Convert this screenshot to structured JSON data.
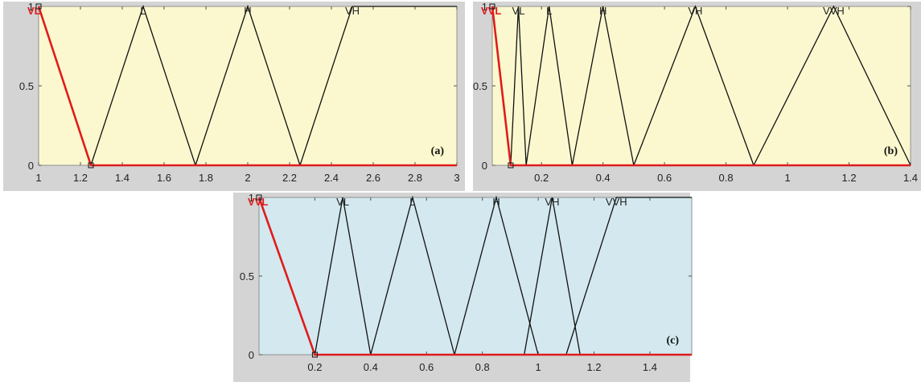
{
  "chart_data": [
    {
      "id": "a",
      "type": "line",
      "panel_label": "(a)",
      "background": "#fbf8cf",
      "frame_color": "#bdbdbd",
      "xlim": [
        1,
        3
      ],
      "ylim": [
        0,
        1
      ],
      "xticks": [
        1,
        1.2,
        1.4,
        1.6,
        1.8,
        2,
        2.2,
        2.4,
        2.6,
        2.8,
        3
      ],
      "xtick_labels": [
        "1",
        "1.2",
        "1.4",
        "1.6",
        "1.8",
        "2",
        "2.2",
        "2.4",
        "2.6",
        "2.8",
        "3"
      ],
      "yticks": [
        0,
        0.5,
        1
      ],
      "ytick_labels": [
        "0",
        "0.5",
        "1"
      ],
      "series": [
        {
          "name": "VL",
          "color": "#e01b1b",
          "highlight": true,
          "points": [
            [
              1,
              1
            ],
            [
              1.25,
              0
            ],
            [
              3,
              0
            ]
          ]
        },
        {
          "name": "L",
          "color": "#111111",
          "points": [
            [
              1.25,
              0
            ],
            [
              1.5,
              1
            ],
            [
              1.75,
              0
            ]
          ]
        },
        {
          "name": "H",
          "color": "#111111",
          "points": [
            [
              1.75,
              0
            ],
            [
              2,
              1
            ],
            [
              2.25,
              0
            ]
          ]
        },
        {
          "name": "VH",
          "color": "#111111",
          "points": [
            [
              2.25,
              0
            ],
            [
              2.5,
              1
            ],
            [
              3,
              1
            ]
          ]
        }
      ]
    },
    {
      "id": "b",
      "type": "line",
      "panel_label": "(b)",
      "background": "#fbf8cf",
      "frame_color": "#bdbdbd",
      "xlim": [
        0.04,
        1.4
      ],
      "ylim": [
        0,
        1
      ],
      "xticks": [
        0.2,
        0.4,
        0.6,
        0.8,
        1,
        1.2,
        1.4
      ],
      "xtick_labels": [
        "0.2",
        "0.4",
        "0.6",
        "0.8",
        "1",
        "1.2",
        "1.4"
      ],
      "yticks": [
        0,
        0.5,
        1
      ],
      "ytick_labels": [
        "0",
        "0.5",
        "1"
      ],
      "series": [
        {
          "name": "VVL",
          "color": "#e01b1b",
          "highlight": true,
          "points": [
            [
              0.04,
              1
            ],
            [
              0.1,
              0
            ],
            [
              1.4,
              0
            ]
          ]
        },
        {
          "name": "VL",
          "color": "#111111",
          "points": [
            [
              0.1,
              0
            ],
            [
              0.125,
              1
            ],
            [
              0.15,
              0
            ]
          ]
        },
        {
          "name": "L",
          "color": "#111111",
          "points": [
            [
              0.15,
              0
            ],
            [
              0.225,
              1
            ],
            [
              0.3,
              0
            ]
          ]
        },
        {
          "name": "H",
          "color": "#111111",
          "points": [
            [
              0.3,
              0
            ],
            [
              0.4,
              1
            ],
            [
              0.5,
              0
            ]
          ]
        },
        {
          "name": "VH",
          "color": "#111111",
          "points": [
            [
              0.5,
              0
            ],
            [
              0.7,
              1
            ],
            [
              0.89,
              0
            ]
          ]
        },
        {
          "name": "VVH",
          "color": "#111111",
          "points": [
            [
              0.89,
              0
            ],
            [
              1.15,
              1
            ],
            [
              1.4,
              0
            ]
          ]
        }
      ]
    },
    {
      "id": "c",
      "type": "line",
      "panel_label": "(c)",
      "background": "#d3e8ef",
      "frame_color": "#bdbdbd",
      "xlim": [
        0,
        1.55
      ],
      "ylim": [
        0,
        1
      ],
      "xticks": [
        0.2,
        0.4,
        0.6,
        0.8,
        1,
        1.2,
        1.4
      ],
      "xtick_labels": [
        "0.2",
        "0.4",
        "0.6",
        "0.8",
        "1",
        "1.2",
        "1.4"
      ],
      "yticks": [
        0,
        0.5,
        1
      ],
      "ytick_labels": [
        "0",
        "0.5",
        "1"
      ],
      "series": [
        {
          "name": "VVL",
          "color": "#e01b1b",
          "highlight": true,
          "points": [
            [
              0,
              1
            ],
            [
              0.2,
              0
            ],
            [
              1.55,
              0
            ]
          ]
        },
        {
          "name": "VL",
          "color": "#111111",
          "points": [
            [
              0.2,
              0
            ],
            [
              0.3,
              1
            ],
            [
              0.4,
              0
            ]
          ]
        },
        {
          "name": "L",
          "color": "#111111",
          "points": [
            [
              0.4,
              0
            ],
            [
              0.55,
              1
            ],
            [
              0.7,
              0
            ]
          ]
        },
        {
          "name": "H",
          "color": "#111111",
          "points": [
            [
              0.7,
              0
            ],
            [
              0.85,
              1
            ],
            [
              1,
              0
            ]
          ]
        },
        {
          "name": "VH",
          "color": "#111111",
          "points": [
            [
              0.95,
              0
            ],
            [
              1.05,
              1
            ],
            [
              1.15,
              0
            ]
          ]
        },
        {
          "name": "VVH",
          "color": "#111111",
          "points": [
            [
              1.1,
              0
            ],
            [
              1.28,
              1
            ],
            [
              1.55,
              1
            ]
          ]
        }
      ]
    }
  ]
}
